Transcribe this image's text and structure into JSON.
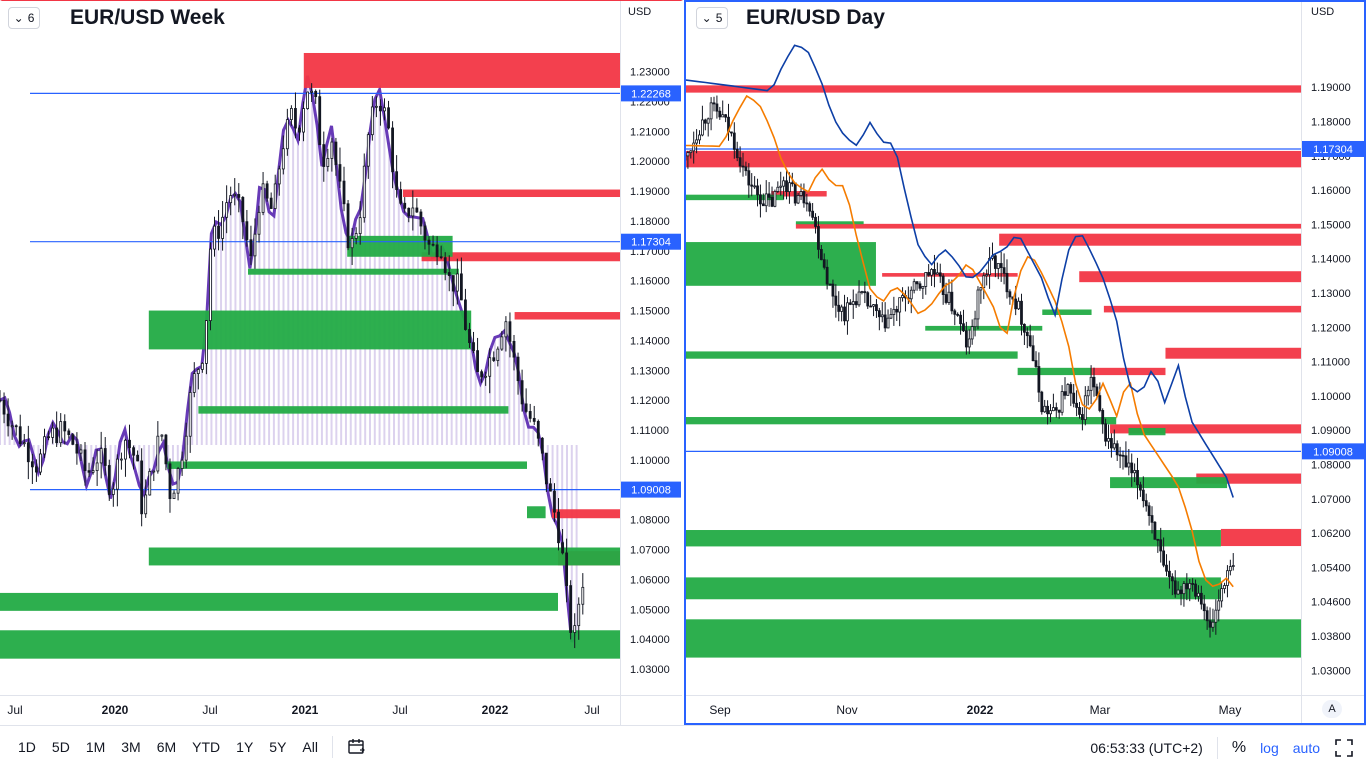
{
  "toolbar": {
    "timeframes": [
      "1D",
      "5D",
      "1M",
      "3M",
      "6M",
      "YTD",
      "1Y",
      "5Y",
      "All"
    ],
    "clock": "06:53:33 (UTC+2)",
    "percent": "%",
    "log": "log",
    "auto": "auto"
  },
  "panels": [
    {
      "layout_num": "6",
      "title": "EUR/USD Week",
      "currency": "USD"
    },
    {
      "layout_num": "5",
      "title": "EUR/USD Day",
      "currency": "USD"
    }
  ],
  "auto_btn": "A",
  "colors": {
    "supply": "#f23645",
    "demand": "#089981",
    "demand_bright": "#22ab45",
    "hline": "#2962ff",
    "purple": "#673ab7",
    "sma_fast": "#f57c00",
    "sma_slow": "#0d3fa6",
    "candle": "#131722"
  },
  "chart_data": [
    {
      "type": "candlestick",
      "title": "EUR/USD Week",
      "timeframe": "1W",
      "x_ticks": [
        "Jul",
        "2020",
        "Jul",
        "2021",
        "Jul",
        "2022",
        "Jul"
      ],
      "y_ticks": [
        "1.23000",
        "1.22000",
        "1.21000",
        "1.20000",
        "1.19000",
        "1.18000",
        "1.17000",
        "1.16000",
        "1.15000",
        "1.14000",
        "1.13000",
        "1.12000",
        "1.11000",
        "1.10000",
        "1.09000",
        "1.08000",
        "1.07000",
        "1.06000",
        "1.05000",
        "1.04000",
        "1.03000"
      ],
      "ylim": [
        1.0287,
        1.2372
      ],
      "price_labels": [
        "1.22268",
        "1.17304",
        "1.09008"
      ],
      "horizontal_lines": [
        1.22268,
        1.17304,
        1.09008
      ],
      "close_path": [
        {
          "t": 0,
          "p": 1.12
        },
        {
          "t": 0.02,
          "p": 1.112
        },
        {
          "t": 0.04,
          "p": 1.105
        },
        {
          "t": 0.06,
          "p": 1.098
        },
        {
          "t": 0.08,
          "p": 1.108
        },
        {
          "t": 0.1,
          "p": 1.11
        },
        {
          "t": 0.12,
          "p": 1.105
        },
        {
          "t": 0.14,
          "p": 1.095
        },
        {
          "t": 0.16,
          "p": 1.102
        },
        {
          "t": 0.18,
          "p": 1.09
        },
        {
          "t": 0.2,
          "p": 1.108
        },
        {
          "t": 0.22,
          "p": 1.1
        },
        {
          "t": 0.23,
          "p": 1.082
        },
        {
          "t": 0.245,
          "p": 1.097
        },
        {
          "t": 0.26,
          "p": 1.11
        },
        {
          "t": 0.275,
          "p": 1.088
        },
        {
          "t": 0.29,
          "p": 1.098
        },
        {
          "t": 0.31,
          "p": 1.125
        },
        {
          "t": 0.33,
          "p": 1.138
        },
        {
          "t": 0.34,
          "p": 1.173
        },
        {
          "t": 0.355,
          "p": 1.178
        },
        {
          "t": 0.37,
          "p": 1.19
        },
        {
          "t": 0.39,
          "p": 1.182
        },
        {
          "t": 0.405,
          "p": 1.166
        },
        {
          "t": 0.42,
          "p": 1.19
        },
        {
          "t": 0.44,
          "p": 1.183
        },
        {
          "t": 0.455,
          "p": 1.205
        },
        {
          "t": 0.47,
          "p": 1.215
        },
        {
          "t": 0.48,
          "p": 1.21
        },
        {
          "t": 0.495,
          "p": 1.225
        },
        {
          "t": 0.51,
          "p": 1.218
        },
        {
          "t": 0.52,
          "p": 1.2
        },
        {
          "t": 0.535,
          "p": 1.208
        },
        {
          "t": 0.55,
          "p": 1.188
        },
        {
          "t": 0.565,
          "p": 1.17
        },
        {
          "t": 0.58,
          "p": 1.182
        },
        {
          "t": 0.595,
          "p": 1.21
        },
        {
          "t": 0.61,
          "p": 1.222
        },
        {
          "t": 0.625,
          "p": 1.213
        },
        {
          "t": 0.64,
          "p": 1.188
        },
        {
          "t": 0.65,
          "p": 1.18
        },
        {
          "t": 0.665,
          "p": 1.186
        },
        {
          "t": 0.68,
          "p": 1.178
        },
        {
          "t": 0.695,
          "p": 1.17
        },
        {
          "t": 0.71,
          "p": 1.173
        },
        {
          "t": 0.725,
          "p": 1.16
        },
        {
          "t": 0.74,
          "p": 1.158
        },
        {
          "t": 0.755,
          "p": 1.14
        },
        {
          "t": 0.77,
          "p": 1.128
        },
        {
          "t": 0.785,
          "p": 1.132
        },
        {
          "t": 0.8,
          "p": 1.138
        },
        {
          "t": 0.815,
          "p": 1.148
        },
        {
          "t": 0.83,
          "p": 1.132
        },
        {
          "t": 0.845,
          "p": 1.118
        },
        {
          "t": 0.86,
          "p": 1.112
        },
        {
          "t": 0.875,
          "p": 1.1
        },
        {
          "t": 0.885,
          "p": 1.09
        },
        {
          "t": 0.895,
          "p": 1.082
        },
        {
          "t": 0.905,
          "p": 1.072
        },
        {
          "t": 0.915,
          "p": 1.052
        },
        {
          "t": 0.925,
          "p": 1.038
        },
        {
          "t": 0.935,
          "p": 1.055
        },
        {
          "t": 0.94,
          "p": 1.06
        }
      ],
      "zones": [
        {
          "kind": "supply",
          "from": 0.49,
          "to": 1.0,
          "low": 1.2245,
          "high": 1.2362
        },
        {
          "kind": "supply",
          "from": 0.65,
          "to": 1.0,
          "low": 1.188,
          "high": 1.1905
        },
        {
          "kind": "supply",
          "from": 0.68,
          "to": 1.0,
          "low": 1.1665,
          "high": 1.1695
        },
        {
          "kind": "supply",
          "from": 0.83,
          "to": 1.0,
          "low": 1.147,
          "high": 1.1495
        },
        {
          "kind": "supply",
          "from": 0.89,
          "to": 1.0,
          "low": 1.0805,
          "high": 1.0835
        },
        {
          "kind": "supply",
          "from": 0.9,
          "to": 1.0,
          "low": 1.0647,
          "high": 1.0695
        },
        {
          "kind": "demand",
          "from": 0.56,
          "to": 0.73,
          "low": 1.168,
          "high": 1.175
        },
        {
          "kind": "demand",
          "from": 0.4,
          "to": 0.74,
          "low": 1.162,
          "high": 1.164
        },
        {
          "kind": "demand",
          "from": 0.24,
          "to": 0.76,
          "low": 1.137,
          "high": 1.15
        },
        {
          "kind": "demand",
          "from": 0.32,
          "to": 0.82,
          "low": 1.1155,
          "high": 1.118
        },
        {
          "kind": "demand",
          "from": 0.27,
          "to": 0.85,
          "low": 1.097,
          "high": 1.0995
        },
        {
          "kind": "demand",
          "from": 0.24,
          "to": 1.0,
          "low": 1.0647,
          "high": 1.0707
        },
        {
          "kind": "demand",
          "from": 0.0,
          "to": 0.9,
          "low": 1.0495,
          "high": 1.0555
        },
        {
          "kind": "demand",
          "from": 0.0,
          "to": 1.0,
          "low": 1.0335,
          "high": 1.043
        },
        {
          "kind": "demand",
          "from": 0.85,
          "to": 0.88,
          "low": 1.0805,
          "high": 1.0845
        }
      ]
    },
    {
      "type": "candlestick",
      "title": "EUR/USD Day",
      "timeframe": "1D",
      "x_ticks": [
        "Sep",
        "Nov",
        "2022",
        "Mar",
        "May"
      ],
      "y_ticks": [
        "1.19000",
        "1.18000",
        "1.17000",
        "1.16000",
        "1.15000",
        "1.14000",
        "1.13000",
        "1.12000",
        "1.11000",
        "1.10000",
        "1.09000",
        "1.08000",
        "1.07000",
        "1.06200",
        "1.05400",
        "1.04600",
        "1.03800",
        "1.03000"
      ],
      "ylim": [
        1.0279,
        1.198
      ],
      "price_labels": [
        "1.17304",
        "1.09008"
      ],
      "horizontal_lines": [
        1.17304,
        1.09008
      ],
      "series": [
        {
          "name": "",
          "kind": "sma_fast"
        },
        {
          "name": "",
          "kind": "sma_slow"
        }
      ],
      "close_path": [
        {
          "t": 0,
          "p": 1.17
        },
        {
          "t": 0.02,
          "p": 1.178
        },
        {
          "t": 0.04,
          "p": 1.184
        },
        {
          "t": 0.06,
          "p": 1.182
        },
        {
          "t": 0.08,
          "p": 1.175
        },
        {
          "t": 0.1,
          "p": 1.165
        },
        {
          "t": 0.12,
          "p": 1.16
        },
        {
          "t": 0.14,
          "p": 1.158
        },
        {
          "t": 0.16,
          "p": 1.165
        },
        {
          "t": 0.18,
          "p": 1.16
        },
        {
          "t": 0.2,
          "p": 1.16
        },
        {
          "t": 0.22,
          "p": 1.145
        },
        {
          "t": 0.24,
          "p": 1.132
        },
        {
          "t": 0.26,
          "p": 1.128
        },
        {
          "t": 0.28,
          "p": 1.133
        },
        {
          "t": 0.3,
          "p": 1.13
        },
        {
          "t": 0.32,
          "p": 1.125
        },
        {
          "t": 0.34,
          "p": 1.128
        },
        {
          "t": 0.36,
          "p": 1.133
        },
        {
          "t": 0.38,
          "p": 1.135
        },
        {
          "t": 0.4,
          "p": 1.14
        },
        {
          "t": 0.42,
          "p": 1.134
        },
        {
          "t": 0.44,
          "p": 1.128
        },
        {
          "t": 0.46,
          "p": 1.118
        },
        {
          "t": 0.48,
          "p": 1.136
        },
        {
          "t": 0.5,
          "p": 1.143
        },
        {
          "t": 0.52,
          "p": 1.137
        },
        {
          "t": 0.54,
          "p": 1.13
        },
        {
          "t": 0.56,
          "p": 1.12
        },
        {
          "t": 0.58,
          "p": 1.102
        },
        {
          "t": 0.6,
          "p": 1.1
        },
        {
          "t": 0.62,
          "p": 1.108
        },
        {
          "t": 0.64,
          "p": 1.098
        },
        {
          "t": 0.66,
          "p": 1.11
        },
        {
          "t": 0.68,
          "p": 1.095
        },
        {
          "t": 0.7,
          "p": 1.09
        },
        {
          "t": 0.72,
          "p": 1.085
        },
        {
          "t": 0.74,
          "p": 1.08
        },
        {
          "t": 0.76,
          "p": 1.07
        },
        {
          "t": 0.78,
          "p": 1.055
        },
        {
          "t": 0.8,
          "p": 1.052
        },
        {
          "t": 0.82,
          "p": 1.055
        },
        {
          "t": 0.84,
          "p": 1.05
        },
        {
          "t": 0.85,
          "p": 1.04
        },
        {
          "t": 0.86,
          "p": 1.045
        },
        {
          "t": 0.875,
          "p": 1.055
        },
        {
          "t": 0.89,
          "p": 1.058
        }
      ],
      "zones": [
        {
          "kind": "supply",
          "from": 0.0,
          "to": 1.0,
          "low": 1.1885,
          "high": 1.1905
        },
        {
          "kind": "supply",
          "from": 0.0,
          "to": 1.0,
          "low": 1.168,
          "high": 1.1725
        },
        {
          "kind": "supply",
          "from": 0.14,
          "to": 0.23,
          "low": 1.16,
          "high": 1.1615
        },
        {
          "kind": "supply",
          "from": 0.18,
          "to": 1.0,
          "low": 1.1512,
          "high": 1.1525
        },
        {
          "kind": "supply",
          "from": 0.51,
          "to": 1.0,
          "low": 1.1465,
          "high": 1.1498
        },
        {
          "kind": "supply",
          "from": 0.32,
          "to": 0.54,
          "low": 1.138,
          "high": 1.139
        },
        {
          "kind": "supply",
          "from": 0.64,
          "to": 1.0,
          "low": 1.1365,
          "high": 1.1395
        },
        {
          "kind": "supply",
          "from": 0.68,
          "to": 1.0,
          "low": 1.1282,
          "high": 1.13
        },
        {
          "kind": "supply",
          "from": 0.78,
          "to": 1.0,
          "low": 1.1155,
          "high": 1.1185
        },
        {
          "kind": "supply",
          "from": 0.66,
          "to": 0.78,
          "low": 1.111,
          "high": 1.113
        },
        {
          "kind": "supply",
          "from": 0.69,
          "to": 1.0,
          "low": 1.095,
          "high": 1.0975
        },
        {
          "kind": "supply",
          "from": 0.83,
          "to": 1.0,
          "low": 1.0812,
          "high": 1.084
        },
        {
          "kind": "supply",
          "from": 0.87,
          "to": 1.0,
          "low": 1.0641,
          "high": 1.0688
        },
        {
          "kind": "demand",
          "from": 0.0,
          "to": 0.16,
          "low": 1.159,
          "high": 1.1605
        },
        {
          "kind": "demand",
          "from": 0.18,
          "to": 0.29,
          "low": 1.1524,
          "high": 1.1532
        },
        {
          "kind": "demand",
          "from": 0.0,
          "to": 0.31,
          "low": 1.1355,
          "high": 1.1475
        },
        {
          "kind": "demand",
          "from": 0.39,
          "to": 0.58,
          "low": 1.1232,
          "high": 1.1245
        },
        {
          "kind": "demand",
          "from": 0.0,
          "to": 0.54,
          "low": 1.1155,
          "high": 1.1175
        },
        {
          "kind": "demand",
          "from": 0.54,
          "to": 0.66,
          "low": 1.111,
          "high": 1.113
        },
        {
          "kind": "demand",
          "from": 0.58,
          "to": 0.66,
          "low": 1.1275,
          "high": 1.129
        },
        {
          "kind": "demand",
          "from": 0.0,
          "to": 0.7,
          "low": 1.0975,
          "high": 1.0995
        },
        {
          "kind": "demand",
          "from": 0.72,
          "to": 0.78,
          "low": 1.0945,
          "high": 1.0965
        },
        {
          "kind": "demand",
          "from": 0.69,
          "to": 0.88,
          "low": 1.08,
          "high": 1.083
        },
        {
          "kind": "demand",
          "from": 0.0,
          "to": 0.87,
          "low": 1.064,
          "high": 1.0685
        },
        {
          "kind": "demand",
          "from": 0.0,
          "to": 0.87,
          "low": 1.0495,
          "high": 1.0555
        },
        {
          "kind": "demand",
          "from": 0.0,
          "to": 1.0,
          "low": 1.0335,
          "high": 1.044
        }
      ]
    }
  ]
}
